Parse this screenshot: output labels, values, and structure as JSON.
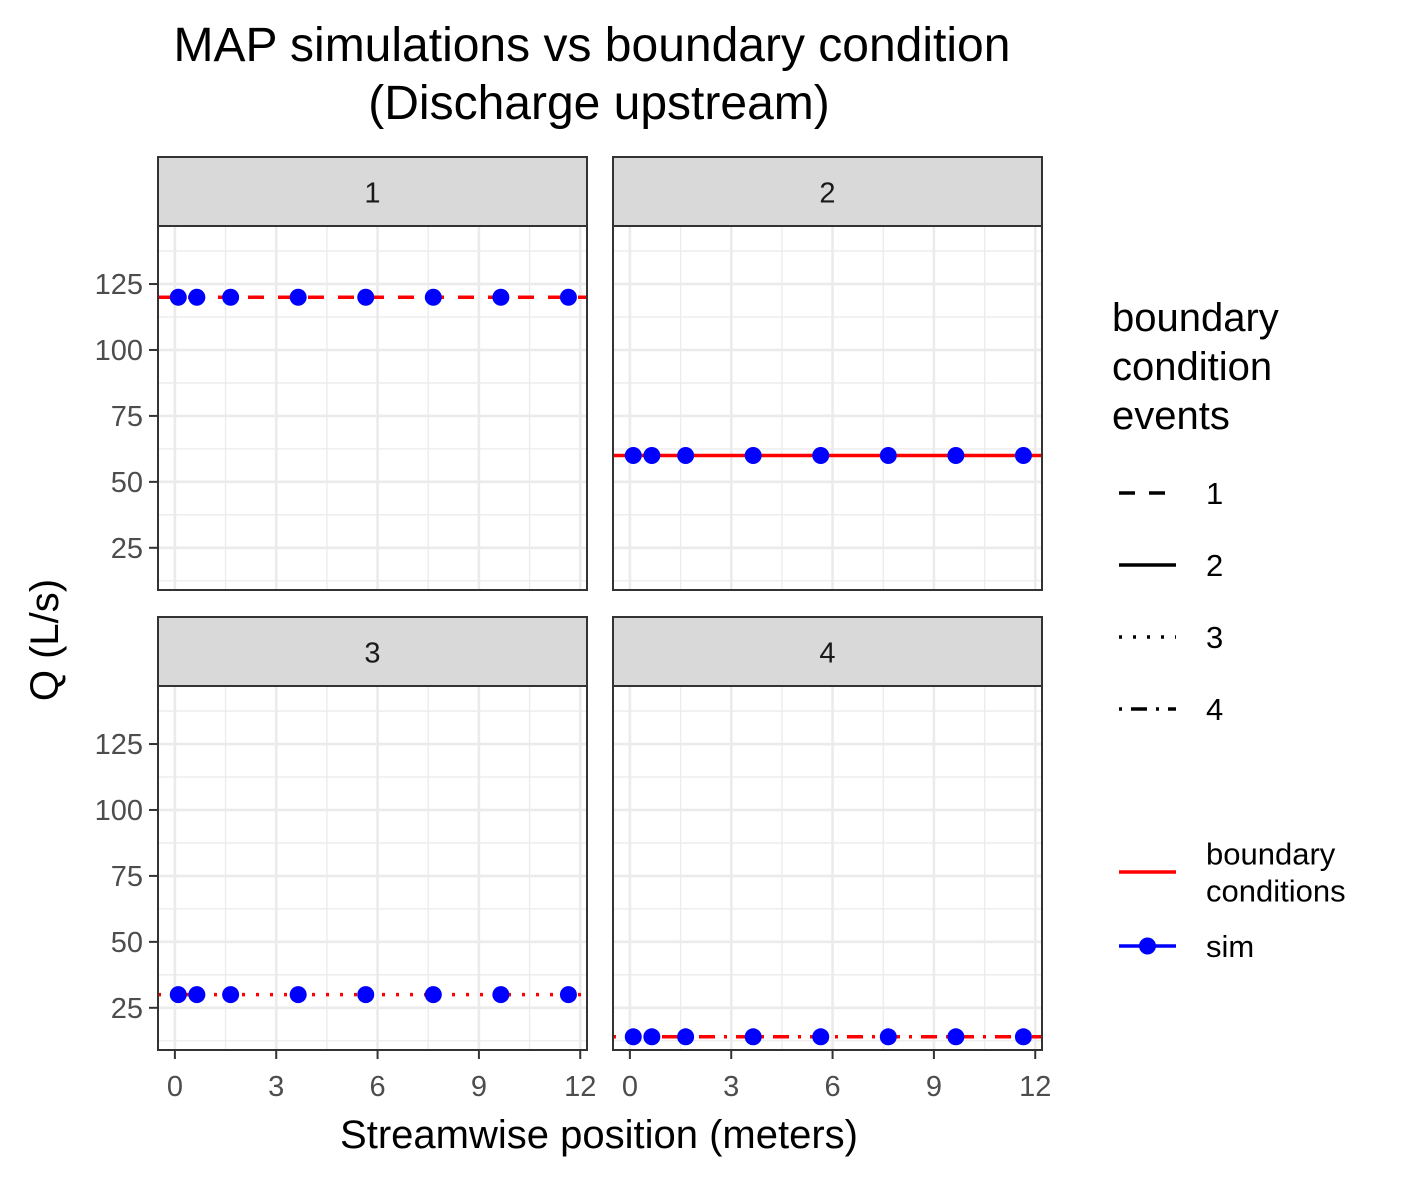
{
  "chart_data": {
    "type": "scatter",
    "title": [
      "MAP simulations vs boundary condition",
      "(Discharge upstream)"
    ],
    "xlabel": "Streamwise position (meters)",
    "ylabel": "Q (L/s)",
    "xlim": [
      -0.5,
      12.2
    ],
    "ylim": [
      9,
      147
    ],
    "x_ticks": [
      0,
      3,
      6,
      9,
      12
    ],
    "y_ticks": [
      25,
      50,
      75,
      100,
      125
    ],
    "grid": true,
    "colors": {
      "boundary": "#FF0000",
      "sim": "#0000FF",
      "strip": "#D9D9D9",
      "grid": "#EBEBEB"
    },
    "facets": [
      {
        "label": "1",
        "event": "1",
        "linetype": "dashed",
        "boundary_value": 120,
        "sim_x": [
          0.1,
          0.65,
          1.65,
          3.65,
          5.65,
          7.65,
          9.65,
          11.65
        ],
        "sim_y": [
          120,
          120,
          120,
          120,
          120,
          120,
          120,
          120
        ]
      },
      {
        "label": "2",
        "event": "2",
        "linetype": "solid",
        "boundary_value": 60,
        "sim_x": [
          0.1,
          0.65,
          1.65,
          3.65,
          5.65,
          7.65,
          9.65,
          11.65
        ],
        "sim_y": [
          60,
          60,
          60,
          60,
          60,
          60,
          60,
          60
        ]
      },
      {
        "label": "3",
        "event": "3",
        "linetype": "dotted",
        "boundary_value": 30,
        "sim_x": [
          0.1,
          0.65,
          1.65,
          3.65,
          5.65,
          7.65,
          9.65,
          11.65
        ],
        "sim_y": [
          30,
          30,
          30,
          30,
          30,
          30,
          30,
          30
        ]
      },
      {
        "label": "4",
        "event": "4",
        "linetype": "dotdash",
        "boundary_value": 14,
        "sim_x": [
          0.1,
          0.65,
          1.65,
          3.65,
          5.65,
          7.65,
          9.65,
          11.65
        ],
        "sim_y": [
          14,
          14,
          14,
          14,
          14,
          14,
          14,
          14
        ]
      }
    ],
    "legend": {
      "placement": "right",
      "linetype_title": [
        "boundary",
        "condition",
        "events"
      ],
      "linetype_entries": [
        {
          "label": "1",
          "linetype": "dashed"
        },
        {
          "label": "2",
          "linetype": "solid"
        },
        {
          "label": "3",
          "linetype": "dotted"
        },
        {
          "label": "4",
          "linetype": "dotdash"
        }
      ],
      "color_entries": [
        {
          "label": [
            "boundary",
            "conditions"
          ],
          "kind": "line",
          "color": "#FF0000"
        },
        {
          "label": [
            "sim"
          ],
          "kind": "line-point",
          "color": "#0000FF"
        }
      ]
    }
  }
}
